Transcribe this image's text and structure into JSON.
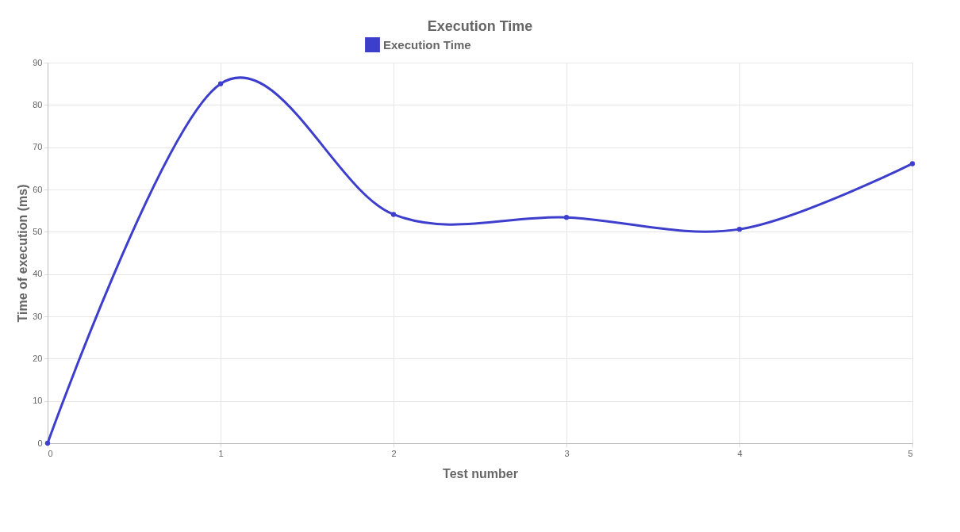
{
  "chart_data": {
    "type": "line",
    "title": "Execution Time",
    "xlabel": "Test number",
    "ylabel": "Time of execution (ms)",
    "x": [
      0,
      1,
      2,
      3,
      4,
      5
    ],
    "series": [
      {
        "name": "Execution Time",
        "color": "#3d3fcc",
        "values": [
          0,
          85,
          54.1,
          53.4,
          50.6,
          66.1
        ]
      }
    ],
    "xlim": [
      0,
      5
    ],
    "xticks": [
      0,
      1,
      2,
      3,
      4,
      5
    ],
    "ylim": [
      0,
      90
    ],
    "yticks": [
      0,
      10,
      20,
      30,
      40,
      50,
      60,
      70,
      80,
      90
    ],
    "grid": true,
    "legend": "top",
    "marker": "circle",
    "line_style": "solid"
  }
}
